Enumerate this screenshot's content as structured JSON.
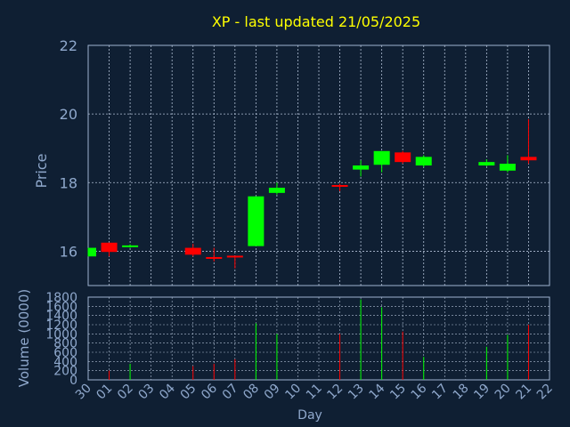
{
  "chart_data": [
    {
      "type": "candlestick",
      "title": "XP - last updated 21/05/2025",
      "ylabel": "Price",
      "ylim": [
        15,
        22
      ],
      "yticks": [
        16,
        18,
        20,
        22
      ],
      "grid": true,
      "up_color": "#00ff00",
      "down_color": "#ff0000",
      "categories": [
        "30",
        "01",
        "02",
        "03",
        "04",
        "05",
        "06",
        "07",
        "08",
        "09",
        "10",
        "11",
        "12",
        "13",
        "14",
        "15",
        "16",
        "17",
        "18",
        "19",
        "20",
        "21",
        "22"
      ],
      "candles": [
        {
          "day": "30",
          "open": 15.85,
          "close": 16.1,
          "high": 16.1,
          "low": 15.85
        },
        {
          "day": "01",
          "open": 16.25,
          "close": 15.98,
          "high": 16.25,
          "low": 15.85
        },
        {
          "day": "02",
          "open": 16.12,
          "close": 16.17,
          "high": 16.2,
          "low": 16.1
        },
        {
          "day": "05",
          "open": 16.1,
          "close": 15.9,
          "high": 16.22,
          "low": 15.85
        },
        {
          "day": "06",
          "open": 15.83,
          "close": 15.78,
          "high": 16.1,
          "low": 15.7
        },
        {
          "day": "07",
          "open": 15.87,
          "close": 15.83,
          "high": 15.87,
          "low": 15.5
        },
        {
          "day": "08",
          "open": 16.15,
          "close": 17.6,
          "high": 17.6,
          "low": 16.15
        },
        {
          "day": "09",
          "open": 17.7,
          "close": 17.85,
          "high": 18.0,
          "low": 17.65
        },
        {
          "day": "12",
          "open": 17.93,
          "close": 17.88,
          "high": 17.97,
          "low": 17.75
        },
        {
          "day": "13",
          "open": 18.38,
          "close": 18.5,
          "high": 18.65,
          "low": 18.18
        },
        {
          "day": "14",
          "open": 18.52,
          "close": 18.92,
          "high": 18.92,
          "low": 18.3
        },
        {
          "day": "15",
          "open": 18.88,
          "close": 18.6,
          "high": 18.92,
          "low": 18.55
        },
        {
          "day": "16",
          "open": 18.5,
          "close": 18.75,
          "high": 18.8,
          "low": 18.45
        },
        {
          "day": "19",
          "open": 18.5,
          "close": 18.6,
          "high": 18.68,
          "low": 18.48
        },
        {
          "day": "20",
          "open": 18.35,
          "close": 18.55,
          "high": 18.8,
          "low": 18.3
        },
        {
          "day": "21",
          "open": 18.75,
          "close": 18.65,
          "high": 19.85,
          "low": 18.55
        }
      ]
    },
    {
      "type": "bar",
      "ylabel": "Volume (0000)",
      "xlabel": "Day",
      "ylim": [
        0,
        1800
      ],
      "yticks": [
        0,
        200,
        400,
        600,
        800,
        1000,
        1200,
        1400,
        1600,
        1800
      ],
      "categories": [
        "30",
        "01",
        "02",
        "03",
        "04",
        "05",
        "06",
        "07",
        "08",
        "09",
        "10",
        "11",
        "12",
        "13",
        "14",
        "15",
        "16",
        "17",
        "18",
        "19",
        "20",
        "21",
        "22"
      ],
      "bars": [
        {
          "day": "01",
          "value": 200,
          "color": "#ff0000"
        },
        {
          "day": "02",
          "value": 350,
          "color": "#00ff00"
        },
        {
          "day": "05",
          "value": 300,
          "color": "#ff0000"
        },
        {
          "day": "06",
          "value": 350,
          "color": "#ff0000"
        },
        {
          "day": "07",
          "value": 450,
          "color": "#ff0000"
        },
        {
          "day": "08",
          "value": 1230,
          "color": "#00ff00"
        },
        {
          "day": "09",
          "value": 1000,
          "color": "#00ff00"
        },
        {
          "day": "12",
          "value": 1000,
          "color": "#ff0000"
        },
        {
          "day": "13",
          "value": 1750,
          "color": "#00ff00"
        },
        {
          "day": "14",
          "value": 1580,
          "color": "#00ff00"
        },
        {
          "day": "15",
          "value": 1050,
          "color": "#ff0000"
        },
        {
          "day": "16",
          "value": 500,
          "color": "#00ff00"
        },
        {
          "day": "19",
          "value": 720,
          "color": "#00ff00"
        },
        {
          "day": "20",
          "value": 980,
          "color": "#00ff00"
        },
        {
          "day": "21",
          "value": 1200,
          "color": "#ff0000"
        }
      ]
    }
  ],
  "colors": {
    "background": "#0f1f33",
    "title": "#ffff00",
    "axis_text": "#8fa8cc",
    "axis_line": "#9fb3d1",
    "grid": "#b0bfd4"
  }
}
